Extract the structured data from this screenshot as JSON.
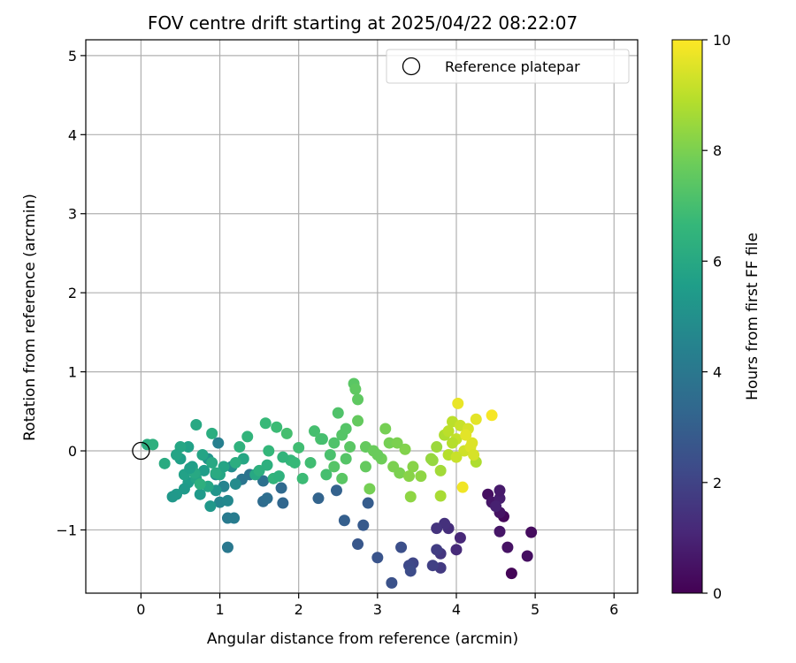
{
  "chart_data": {
    "type": "scatter",
    "title": "FOV centre drift starting at 2025/04/22 08:22:07",
    "xlabel": "Angular distance from reference (arcmin)",
    "ylabel": "Rotation from reference (arcmin)",
    "xlim": [
      -0.7,
      6.3
    ],
    "ylim": [
      -1.8,
      5.2
    ],
    "xticks": [
      0,
      1,
      2,
      3,
      4,
      5,
      6
    ],
    "yticks": [
      -1,
      0,
      1,
      2,
      3,
      4,
      5
    ],
    "grid": true,
    "legend": {
      "position": "top-right",
      "entries": [
        "Reference platepar"
      ]
    },
    "reference_point": {
      "x": 0,
      "y": 0
    },
    "colorbar": {
      "label": "Hours from first FF file",
      "colormap": "viridis",
      "range": [
        0,
        10
      ],
      "ticks": [
        0,
        2,
        4,
        6,
        8,
        10
      ]
    },
    "points": [
      {
        "x": 4.6,
        "y": -0.83,
        "c": 0.2
      },
      {
        "x": 4.7,
        "y": -1.55,
        "c": 0.1
      },
      {
        "x": 4.95,
        "y": -1.03,
        "c": 0.3
      },
      {
        "x": 4.9,
        "y": -1.33,
        "c": 0.4
      },
      {
        "x": 4.65,
        "y": -1.22,
        "c": 0.5
      },
      {
        "x": 4.55,
        "y": -1.02,
        "c": 0.6
      },
      {
        "x": 4.55,
        "y": -0.78,
        "c": 0.5
      },
      {
        "x": 4.4,
        "y": -0.55,
        "c": 0.4
      },
      {
        "x": 4.45,
        "y": -0.65,
        "c": 0.6
      },
      {
        "x": 4.55,
        "y": -0.6,
        "c": 0.8
      },
      {
        "x": 4.55,
        "y": -0.5,
        "c": 0.7
      },
      {
        "x": 4.5,
        "y": -0.7,
        "c": 0.9
      },
      {
        "x": 4.05,
        "y": -1.1,
        "c": 1.1
      },
      {
        "x": 4.0,
        "y": -1.25,
        "c": 1.2
      },
      {
        "x": 3.9,
        "y": -0.98,
        "c": 1.3
      },
      {
        "x": 3.85,
        "y": -0.92,
        "c": 1.4
      },
      {
        "x": 3.75,
        "y": -0.98,
        "c": 1.5
      },
      {
        "x": 3.8,
        "y": -1.3,
        "c": 1.6
      },
      {
        "x": 3.8,
        "y": -1.48,
        "c": 1.7
      },
      {
        "x": 3.75,
        "y": -1.25,
        "c": 1.8
      },
      {
        "x": 3.7,
        "y": -1.45,
        "c": 1.9
      },
      {
        "x": 3.45,
        "y": -1.42,
        "c": 2.1
      },
      {
        "x": 3.4,
        "y": -1.45,
        "c": 2.2
      },
      {
        "x": 3.42,
        "y": -1.52,
        "c": 2.3
      },
      {
        "x": 3.3,
        "y": -1.22,
        "c": 2.4
      },
      {
        "x": 3.18,
        "y": -1.67,
        "c": 2.5
      },
      {
        "x": 3.0,
        "y": -1.35,
        "c": 2.6
      },
      {
        "x": 2.75,
        "y": -1.18,
        "c": 2.7
      },
      {
        "x": 2.82,
        "y": -0.94,
        "c": 2.8
      },
      {
        "x": 2.88,
        "y": -0.66,
        "c": 2.9
      },
      {
        "x": 2.58,
        "y": -0.88,
        "c": 3.0
      },
      {
        "x": 2.48,
        "y": -0.5,
        "c": 3.1
      },
      {
        "x": 2.25,
        "y": -0.6,
        "c": 3.2
      },
      {
        "x": 1.8,
        "y": -0.66,
        "c": 3.3
      },
      {
        "x": 1.78,
        "y": -0.47,
        "c": 3.4
      },
      {
        "x": 1.55,
        "y": -0.64,
        "c": 3.5
      },
      {
        "x": 1.6,
        "y": -0.6,
        "c": 3.6
      },
      {
        "x": 1.55,
        "y": -0.38,
        "c": 3.7
      },
      {
        "x": 1.38,
        "y": -0.3,
        "c": 3.8
      },
      {
        "x": 1.28,
        "y": -0.36,
        "c": 3.9
      },
      {
        "x": 1.1,
        "y": -1.22,
        "c": 4.0
      },
      {
        "x": 1.1,
        "y": -0.85,
        "c": 4.1
      },
      {
        "x": 1.18,
        "y": -0.85,
        "c": 4.2
      },
      {
        "x": 0.98,
        "y": 0.1,
        "c": 4.3
      },
      {
        "x": 1.05,
        "y": -0.45,
        "c": 4.5
      },
      {
        "x": 1.0,
        "y": -0.65,
        "c": 4.6
      },
      {
        "x": 1.1,
        "y": -0.63,
        "c": 4.7
      },
      {
        "x": 1.2,
        "y": -0.42,
        "c": 4.8
      },
      {
        "x": 1.15,
        "y": -0.2,
        "c": 4.9
      },
      {
        "x": 0.95,
        "y": -0.3,
        "c": 5.0
      },
      {
        "x": 0.85,
        "y": -0.1,
        "c": 5.1
      },
      {
        "x": 0.95,
        "y": -0.5,
        "c": 5.2
      },
      {
        "x": 0.88,
        "y": -0.7,
        "c": 5.3
      },
      {
        "x": 0.75,
        "y": -0.55,
        "c": 5.4
      },
      {
        "x": 0.6,
        "y": -0.4,
        "c": 5.5
      },
      {
        "x": 0.5,
        "y": -0.1,
        "c": 5.6
      },
      {
        "x": 0.45,
        "y": -0.55,
        "c": 5.4
      },
      {
        "x": 0.4,
        "y": -0.58,
        "c": 5.3
      },
      {
        "x": 0.55,
        "y": -0.3,
        "c": 5.7
      },
      {
        "x": 0.65,
        "y": -0.2,
        "c": 5.6
      },
      {
        "x": 0.7,
        "y": -0.35,
        "c": 5.8
      },
      {
        "x": 0.8,
        "y": -0.25,
        "c": 5.5
      },
      {
        "x": 0.85,
        "y": -0.45,
        "c": 5.9
      },
      {
        "x": 0.9,
        "y": -0.15,
        "c": 6.0
      },
      {
        "x": 1.0,
        "y": -0.3,
        "c": 5.9
      },
      {
        "x": 1.05,
        "y": -0.2,
        "c": 5.8
      },
      {
        "x": 0.6,
        "y": 0.05,
        "c": 5.7
      },
      {
        "x": 0.7,
        "y": 0.33,
        "c": 6.0
      },
      {
        "x": 0.5,
        "y": 0.05,
        "c": 5.9
      },
      {
        "x": 0.45,
        "y": -0.05,
        "c": 5.8
      },
      {
        "x": 0.3,
        "y": -0.16,
        "c": 6.1
      },
      {
        "x": 0.08,
        "y": 0.08,
        "c": 6.2
      },
      {
        "x": 0.15,
        "y": 0.08,
        "c": 6.3
      },
      {
        "x": 0.9,
        "y": 0.22,
        "c": 6.2
      },
      {
        "x": 0.75,
        "y": -0.42,
        "c": 6.3
      },
      {
        "x": 0.95,
        "y": -0.28,
        "c": 6.1
      },
      {
        "x": 1.3,
        "y": -0.1,
        "c": 5.9
      },
      {
        "x": 1.25,
        "y": 0.05,
        "c": 6.4
      },
      {
        "x": 1.35,
        "y": 0.18,
        "c": 6.5
      },
      {
        "x": 1.45,
        "y": -0.3,
        "c": 6.0
      },
      {
        "x": 1.6,
        "y": -0.18,
        "c": 6.3
      },
      {
        "x": 1.68,
        "y": -0.35,
        "c": 6.5
      },
      {
        "x": 1.62,
        "y": 0.0,
        "c": 6.6
      },
      {
        "x": 1.58,
        "y": 0.35,
        "c": 6.7
      },
      {
        "x": 1.72,
        "y": 0.3,
        "c": 6.8
      },
      {
        "x": 1.85,
        "y": 0.22,
        "c": 7.0
      },
      {
        "x": 1.9,
        "y": -0.12,
        "c": 6.6
      },
      {
        "x": 2.0,
        "y": 0.04,
        "c": 6.9
      },
      {
        "x": 2.05,
        "y": -0.35,
        "c": 6.8
      },
      {
        "x": 2.15,
        "y": -0.15,
        "c": 6.9
      },
      {
        "x": 2.2,
        "y": 0.25,
        "c": 7.0
      },
      {
        "x": 2.28,
        "y": 0.15,
        "c": 7.1
      },
      {
        "x": 2.35,
        "y": -0.3,
        "c": 7.0
      },
      {
        "x": 2.4,
        "y": -0.05,
        "c": 7.1
      },
      {
        "x": 2.45,
        "y": 0.1,
        "c": 7.2
      },
      {
        "x": 2.5,
        "y": 0.48,
        "c": 7.2
      },
      {
        "x": 2.55,
        "y": 0.2,
        "c": 7.3
      },
      {
        "x": 2.6,
        "y": -0.1,
        "c": 7.3
      },
      {
        "x": 2.65,
        "y": 0.05,
        "c": 7.4
      },
      {
        "x": 2.7,
        "y": 0.85,
        "c": 7.4
      },
      {
        "x": 2.72,
        "y": 0.78,
        "c": 7.5
      },
      {
        "x": 2.75,
        "y": 0.65,
        "c": 7.5
      },
      {
        "x": 2.75,
        "y": 0.38,
        "c": 7.6
      },
      {
        "x": 2.55,
        "y": -0.35,
        "c": 7.4
      },
      {
        "x": 2.45,
        "y": -0.2,
        "c": 7.3
      },
      {
        "x": 2.85,
        "y": 0.05,
        "c": 7.6
      },
      {
        "x": 2.95,
        "y": 0.0,
        "c": 7.7
      },
      {
        "x": 3.05,
        "y": -0.1,
        "c": 7.8
      },
      {
        "x": 3.1,
        "y": 0.28,
        "c": 7.9
      },
      {
        "x": 3.15,
        "y": 0.1,
        "c": 7.9
      },
      {
        "x": 3.2,
        "y": -0.2,
        "c": 8.0
      },
      {
        "x": 3.28,
        "y": -0.28,
        "c": 8.0
      },
      {
        "x": 3.35,
        "y": 0.02,
        "c": 8.1
      },
      {
        "x": 3.4,
        "y": -0.32,
        "c": 8.2
      },
      {
        "x": 3.45,
        "y": -0.2,
        "c": 8.2
      },
      {
        "x": 3.42,
        "y": -0.58,
        "c": 8.3
      },
      {
        "x": 3.55,
        "y": -0.32,
        "c": 8.3
      },
      {
        "x": 3.68,
        "y": -0.1,
        "c": 8.4
      },
      {
        "x": 3.75,
        "y": 0.05,
        "c": 8.5
      },
      {
        "x": 3.8,
        "y": -0.25,
        "c": 8.6
      },
      {
        "x": 3.8,
        "y": -0.57,
        "c": 8.7
      },
      {
        "x": 3.85,
        "y": 0.2,
        "c": 8.8
      },
      {
        "x": 3.9,
        "y": -0.05,
        "c": 8.9
      },
      {
        "x": 3.95,
        "y": 0.37,
        "c": 9.0
      },
      {
        "x": 4.0,
        "y": 0.15,
        "c": 9.1
      },
      {
        "x": 4.05,
        "y": 0.32,
        "c": 9.2
      },
      {
        "x": 4.1,
        "y": 0.0,
        "c": 9.3
      },
      {
        "x": 4.15,
        "y": 0.28,
        "c": 9.4
      },
      {
        "x": 4.2,
        "y": 0.1,
        "c": 9.5
      },
      {
        "x": 4.25,
        "y": -0.14,
        "c": 8.8
      },
      {
        "x": 4.25,
        "y": 0.4,
        "c": 9.6
      },
      {
        "x": 4.02,
        "y": 0.6,
        "c": 9.7
      },
      {
        "x": 4.08,
        "y": -0.46,
        "c": 9.8
      },
      {
        "x": 4.45,
        "y": 0.45,
        "c": 9.9
      },
      {
        "x": 4.12,
        "y": 0.2,
        "c": 9.6
      },
      {
        "x": 4.0,
        "y": -0.08,
        "c": 9.2
      },
      {
        "x": 3.95,
        "y": 0.1,
        "c": 8.9
      },
      {
        "x": 3.9,
        "y": 0.25,
        "c": 9.0
      },
      {
        "x": 2.9,
        "y": -0.48,
        "c": 7.9
      },
      {
        "x": 2.85,
        "y": -0.2,
        "c": 7.6
      },
      {
        "x": 1.75,
        "y": -0.32,
        "c": 6.4
      },
      {
        "x": 1.5,
        "y": -0.25,
        "c": 6.3
      },
      {
        "x": 1.2,
        "y": -0.15,
        "c": 6.2
      },
      {
        "x": 0.68,
        "y": -0.28,
        "c": 6.0
      },
      {
        "x": 0.62,
        "y": -0.22,
        "c": 5.6
      },
      {
        "x": 0.78,
        "y": -0.05,
        "c": 5.8
      },
      {
        "x": 0.55,
        "y": -0.48,
        "c": 5.4
      },
      {
        "x": 1.8,
        "y": -0.08,
        "c": 6.5
      },
      {
        "x": 1.95,
        "y": -0.15,
        "c": 6.7
      },
      {
        "x": 2.3,
        "y": 0.15,
        "c": 7.0
      },
      {
        "x": 2.6,
        "y": 0.28,
        "c": 7.3
      },
      {
        "x": 3.0,
        "y": -0.05,
        "c": 7.7
      },
      {
        "x": 3.25,
        "y": 0.1,
        "c": 8.0
      },
      {
        "x": 3.7,
        "y": -0.12,
        "c": 8.4
      },
      {
        "x": 4.18,
        "y": 0.05,
        "c": 9.5
      },
      {
        "x": 4.22,
        "y": -0.05,
        "c": 9.4
      }
    ]
  }
}
